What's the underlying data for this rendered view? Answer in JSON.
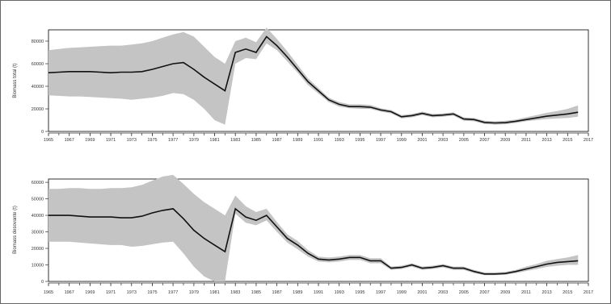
{
  "chart_data": [
    {
      "type": "line",
      "ylabel": "Biomass total (t)",
      "ylim": [
        0,
        90000
      ],
      "yticks": [
        0,
        20000,
        40000,
        60000,
        80000
      ],
      "xlim": [
        1965,
        2017
      ],
      "xticks": [
        1965,
        1967,
        1969,
        1971,
        1973,
        1975,
        1977,
        1979,
        1981,
        1983,
        1985,
        1987,
        1989,
        1991,
        1993,
        1995,
        1997,
        1999,
        2001,
        2003,
        2005,
        2007,
        2009,
        2011,
        2013,
        2015,
        2017
      ],
      "series": [
        {
          "x": [
            1965,
            1966,
            1967,
            1968,
            1969,
            1970,
            1971,
            1972,
            1973,
            1974,
            1975,
            1976,
            1977,
            1978,
            1979,
            1980,
            1981,
            1982,
            1983,
            1984,
            1985,
            1986,
            1987,
            1988,
            1989,
            1990,
            1991,
            1992,
            1993,
            1994,
            1995,
            1996,
            1997,
            1998,
            1999,
            2000,
            2001,
            2002,
            2003,
            2004,
            2005,
            2006,
            2007,
            2008,
            2009,
            2010,
            2011,
            2012,
            2013,
            2014,
            2015,
            2016
          ],
          "values": [
            52000,
            52500,
            53000,
            53000,
            53000,
            52500,
            52000,
            52500,
            52500,
            53000,
            55000,
            57500,
            60000,
            61000,
            55000,
            48000,
            42000,
            36000,
            70000,
            73000,
            70000,
            84000,
            76000,
            66000,
            55000,
            44000,
            36000,
            28000,
            24000,
            22000,
            22000,
            21500,
            19000,
            17500,
            13000,
            14000,
            16000,
            14000,
            14500,
            15500,
            11000,
            10500,
            8000,
            7500,
            7800,
            9000,
            10500,
            12000,
            13500,
            14500,
            15500,
            17000
          ],
          "lower": [
            32000,
            31500,
            31000,
            31000,
            30500,
            30000,
            29500,
            29000,
            28000,
            29000,
            30000,
            31500,
            34000,
            33000,
            28000,
            20000,
            10000,
            6000,
            60000,
            65000,
            64000,
            78000,
            72000,
            62000,
            52000,
            41000,
            33500,
            26000,
            22000,
            20500,
            20000,
            20000,
            17500,
            16000,
            11500,
            12500,
            14500,
            12500,
            13000,
            14000,
            9500,
            9000,
            6500,
            6000,
            6300,
            7500,
            9000,
            10000,
            11000,
            11500,
            12000,
            13000
          ],
          "upper": [
            72000,
            73000,
            74000,
            74500,
            75000,
            75500,
            76000,
            76000,
            77000,
            78000,
            80000,
            83000,
            86000,
            88000,
            84000,
            75000,
            66000,
            60000,
            80000,
            83000,
            79000,
            92000,
            82000,
            71000,
            59000,
            47000,
            38500,
            30000,
            26000,
            24000,
            24000,
            23500,
            20500,
            19000,
            14500,
            15500,
            17500,
            15500,
            16000,
            17000,
            12500,
            12000,
            9500,
            9000,
            9500,
            10500,
            12500,
            14500,
            16500,
            18000,
            20000,
            23000
          ]
        }
      ]
    },
    {
      "type": "line",
      "ylabel": "Biomass desovante (t)",
      "ylim": [
        0,
        62000
      ],
      "yticks": [
        0,
        10000,
        20000,
        30000,
        40000,
        50000,
        60000
      ],
      "xlim": [
        1965,
        2017
      ],
      "xticks": [
        1965,
        1967,
        1969,
        1971,
        1973,
        1975,
        1977,
        1979,
        1981,
        1983,
        1985,
        1987,
        1989,
        1991,
        1993,
        1995,
        1997,
        1999,
        2001,
        2003,
        2005,
        2007,
        2009,
        2011,
        2013,
        2015,
        2017
      ],
      "series": [
        {
          "x": [
            1965,
            1966,
            1967,
            1968,
            1969,
            1970,
            1971,
            1972,
            1973,
            1974,
            1975,
            1976,
            1977,
            1978,
            1979,
            1980,
            1981,
            1982,
            1983,
            1984,
            1985,
            1986,
            1987,
            1988,
            1989,
            1990,
            1991,
            1992,
            1993,
            1994,
            1995,
            1996,
            1997,
            1998,
            1999,
            2000,
            2001,
            2002,
            2003,
            2004,
            2005,
            2006,
            2007,
            2008,
            2009,
            2010,
            2011,
            2012,
            2013,
            2014,
            2015,
            2016
          ],
          "values": [
            40000,
            40000,
            40000,
            39500,
            39000,
            39000,
            39000,
            38500,
            38500,
            39500,
            41500,
            43000,
            44000,
            38000,
            31000,
            26000,
            22000,
            18000,
            44000,
            39000,
            37000,
            40000,
            33000,
            26000,
            22000,
            17000,
            13500,
            13000,
            13500,
            14500,
            14500,
            12500,
            12500,
            8000,
            8500,
            10000,
            8000,
            8500,
            9500,
            8000,
            8000,
            6000,
            4500,
            4500,
            4800,
            6000,
            7500,
            9000,
            10500,
            11500,
            12000,
            12500
          ],
          "lower": [
            24000,
            24000,
            24000,
            23500,
            23000,
            22500,
            22000,
            22000,
            21000,
            21500,
            22500,
            23500,
            24000,
            17000,
            9000,
            3000,
            0,
            0,
            41000,
            35500,
            34000,
            37000,
            30000,
            23500,
            19500,
            15000,
            12000,
            11500,
            12000,
            13000,
            13000,
            11000,
            11000,
            7000,
            7500,
            9000,
            7000,
            7500,
            8500,
            7000,
            7000,
            5000,
            3800,
            3800,
            4000,
            5000,
            6300,
            7500,
            8800,
            9500,
            10000,
            10000
          ],
          "upper": [
            56000,
            56000,
            56500,
            56500,
            56000,
            56000,
            56500,
            56500,
            57000,
            58500,
            61000,
            63500,
            64500,
            59000,
            53000,
            48000,
            44000,
            40000,
            52000,
            45500,
            42000,
            44000,
            36000,
            28500,
            24500,
            19000,
            15000,
            14500,
            15000,
            16000,
            16000,
            14000,
            14000,
            9000,
            9500,
            11000,
            9000,
            9500,
            10500,
            9000,
            9000,
            7000,
            5500,
            5500,
            5800,
            7000,
            9000,
            10500,
            12500,
            13500,
            14500,
            16000
          ]
        }
      ]
    }
  ]
}
